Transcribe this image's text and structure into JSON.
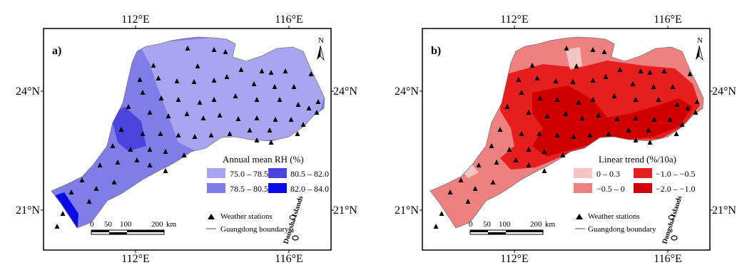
{
  "axes": {
    "top": [
      "112°E",
      "116°E"
    ],
    "bottom": [
      "112°E",
      "116°E"
    ],
    "left": [
      "24°N",
      "21°N"
    ],
    "right": [
      "24°N",
      "21°N"
    ]
  },
  "north": "N",
  "panels": [
    {
      "label": "a)",
      "legend_title": "Annual mean RH (%)",
      "classes": [
        {
          "label": "75.0 – 78.5",
          "color": "#a8a6f0"
        },
        {
          "label": "78.5 – 80.5",
          "color": "#7f7de8"
        },
        {
          "label": "80.5 – 82.0",
          "color": "#4a44dc"
        },
        {
          "label": "82.0 – 84.0",
          "color": "#0a0ae6"
        }
      ],
      "stations_label": "Weather stations",
      "boundary_label": "Guangdong boundary",
      "scale": {
        "ticks": [
          "0",
          "50",
          "100",
          "200"
        ],
        "unit": "km"
      },
      "islands_label": "Dongsha Islands"
    },
    {
      "label": "b)",
      "legend_title": "Linear trend  (%/10a)",
      "classes": [
        {
          "label": "0 – 0.3",
          "color": "#f5c4c4"
        },
        {
          "label": "−0.5 – 0",
          "color": "#ef8080"
        },
        {
          "label": "−1.0 – −0.5",
          "color": "#e61e1e"
        },
        {
          "label": "−2.0 – −1.0",
          "color": "#d10000"
        }
      ],
      "stations_label": "Weather stations",
      "boundary_label": "Guangdong boundary",
      "scale": {
        "ticks": [
          "0",
          "50",
          "100",
          "200"
        ],
        "unit": "km"
      },
      "islands_label": "Dongsha Islands"
    }
  ]
}
